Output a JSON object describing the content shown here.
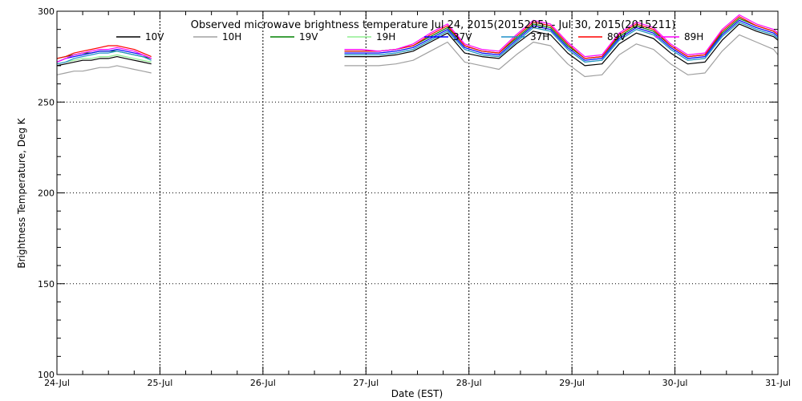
{
  "chart_data": {
    "type": "line",
    "title": "Observed microwave brightness temperature Jul 24, 2015(2015205) - Jul 30, 2015(2015211)",
    "xlabel": "Date (EST)",
    "ylabel": "Brightness Temperature, Deg K",
    "xlim": [
      "2015-07-24",
      "2015-07-31"
    ],
    "ylim": [
      100,
      300
    ],
    "y_ticks": [
      100,
      150,
      200,
      250,
      300
    ],
    "x_ticks": [
      {
        "date": "2015-07-24",
        "label": "24-Jul"
      },
      {
        "date": "2015-07-25",
        "label": "25-Jul"
      },
      {
        "date": "2015-07-26",
        "label": "26-Jul"
      },
      {
        "date": "2015-07-27",
        "label": "27-Jul"
      },
      {
        "date": "2015-07-28",
        "label": "28-Jul"
      },
      {
        "date": "2015-07-29",
        "label": "29-Jul"
      },
      {
        "date": "2015-07-30",
        "label": "30-Jul"
      },
      {
        "date": "2015-07-31",
        "label": "31-Jul"
      }
    ],
    "grid": true,
    "legend_position": "top",
    "series": [
      {
        "name": "10V",
        "color": "#000000"
      },
      {
        "name": "10H",
        "color": "#a0a0a0"
      },
      {
        "name": "19V",
        "color": "#008000"
      },
      {
        "name": "19H",
        "color": "#90ee90"
      },
      {
        "name": "37V",
        "color": "#0000ff"
      },
      {
        "name": "37H",
        "color": "#1e90c8"
      },
      {
        "name": "89V",
        "color": "#ff0000"
      },
      {
        "name": "89H",
        "color": "#ff00ff"
      }
    ],
    "segments": [
      {
        "x": [
          "2015-07-24T00:00",
          "2015-07-24T02:00",
          "2015-07-24T04:00",
          "2015-07-24T06:00",
          "2015-07-24T08:00",
          "2015-07-24T10:00",
          "2015-07-24T12:00",
          "2015-07-24T14:00",
          "2015-07-24T16:00",
          "2015-07-24T18:00",
          "2015-07-24T20:00",
          "2015-07-24T22:00"
        ],
        "values": {
          "10V": [
            270,
            271,
            272,
            273,
            273,
            274,
            274,
            275,
            274,
            273,
            272,
            271
          ],
          "10H": [
            265,
            266,
            267,
            267,
            268,
            269,
            269,
            270,
            269,
            268,
            267,
            266
          ],
          "19V": [
            274,
            275,
            276,
            277,
            277,
            278,
            278,
            278,
            277,
            276,
            275,
            274
          ],
          "19H": [
            271,
            272,
            273,
            274,
            274,
            275,
            275,
            276,
            275,
            274,
            273,
            272
          ],
          "37V": [
            272,
            274,
            275,
            276,
            277,
            278,
            278,
            279,
            278,
            277,
            276,
            274
          ],
          "37H": [
            271,
            272,
            274,
            275,
            276,
            277,
            277,
            278,
            277,
            276,
            275,
            273
          ],
          "89V": [
            274,
            275,
            277,
            278,
            279,
            280,
            281,
            281,
            280,
            279,
            277,
            275
          ],
          "89H": [
            272,
            274,
            276,
            277,
            278,
            279,
            279,
            280,
            279,
            278,
            276,
            274
          ]
        }
      },
      {
        "x": [
          "2015-07-26T19:00",
          "2015-07-26T23:00",
          "2015-07-27T03:00",
          "2015-07-27T07:00",
          "2015-07-27T11:00",
          "2015-07-27T15:00",
          "2015-07-27T19:00",
          "2015-07-27T23:00",
          "2015-07-28T03:00",
          "2015-07-28T07:00",
          "2015-07-28T11:00",
          "2015-07-28T15:00",
          "2015-07-28T19:00",
          "2015-07-28T23:00",
          "2015-07-29T03:00",
          "2015-07-29T07:00",
          "2015-07-29T11:00",
          "2015-07-29T15:00",
          "2015-07-29T19:00",
          "2015-07-29T23:00",
          "2015-07-30T03:00",
          "2015-07-30T07:00",
          "2015-07-30T11:00",
          "2015-07-30T15:00",
          "2015-07-30T19:00",
          "2015-07-30T23:00",
          "2015-07-31T00:00"
        ],
        "values": {
          "10V": [
            275,
            275,
            275,
            276,
            278,
            283,
            288,
            277,
            275,
            274,
            282,
            289,
            287,
            277,
            270,
            271,
            282,
            288,
            285,
            277,
            271,
            272,
            284,
            293,
            289,
            286,
            284
          ],
          "10H": [
            270,
            270,
            270,
            271,
            273,
            278,
            283,
            272,
            270,
            268,
            276,
            283,
            281,
            271,
            264,
            265,
            276,
            282,
            279,
            271,
            265,
            266,
            278,
            287,
            283,
            279,
            276
          ],
          "19V": [
            278,
            278,
            278,
            279,
            281,
            286,
            291,
            281,
            278,
            277,
            285,
            293,
            291,
            281,
            274,
            275,
            286,
            292,
            289,
            281,
            275,
            276,
            288,
            296,
            292,
            289,
            287
          ],
          "19H": [
            276,
            276,
            276,
            277,
            279,
            284,
            289,
            279,
            276,
            275,
            283,
            291,
            289,
            279,
            272,
            273,
            284,
            290,
            287,
            279,
            273,
            274,
            286,
            294,
            290,
            287,
            285
          ],
          "37V": [
            277,
            277,
            277,
            278,
            280,
            285,
            290,
            280,
            277,
            276,
            284,
            292,
            290,
            280,
            273,
            274,
            285,
            291,
            288,
            280,
            274,
            275,
            287,
            295,
            291,
            288,
            286
          ],
          "37H": [
            276,
            276,
            276,
            277,
            279,
            284,
            289,
            279,
            276,
            275,
            283,
            291,
            289,
            279,
            272,
            273,
            284,
            290,
            287,
            279,
            273,
            274,
            286,
            294,
            290,
            287,
            285
          ],
          "89V": [
            278,
            278,
            278,
            279,
            281,
            287,
            292,
            281,
            278,
            277,
            286,
            294,
            292,
            282,
            274,
            275,
            287,
            293,
            290,
            281,
            275,
            276,
            289,
            297,
            292,
            289,
            287
          ],
          "89H": [
            279,
            279,
            278,
            279,
            282,
            288,
            293,
            282,
            279,
            278,
            287,
            295,
            293,
            283,
            275,
            276,
            288,
            294,
            291,
            282,
            276,
            277,
            290,
            298,
            293,
            290,
            288
          ]
        }
      }
    ]
  }
}
